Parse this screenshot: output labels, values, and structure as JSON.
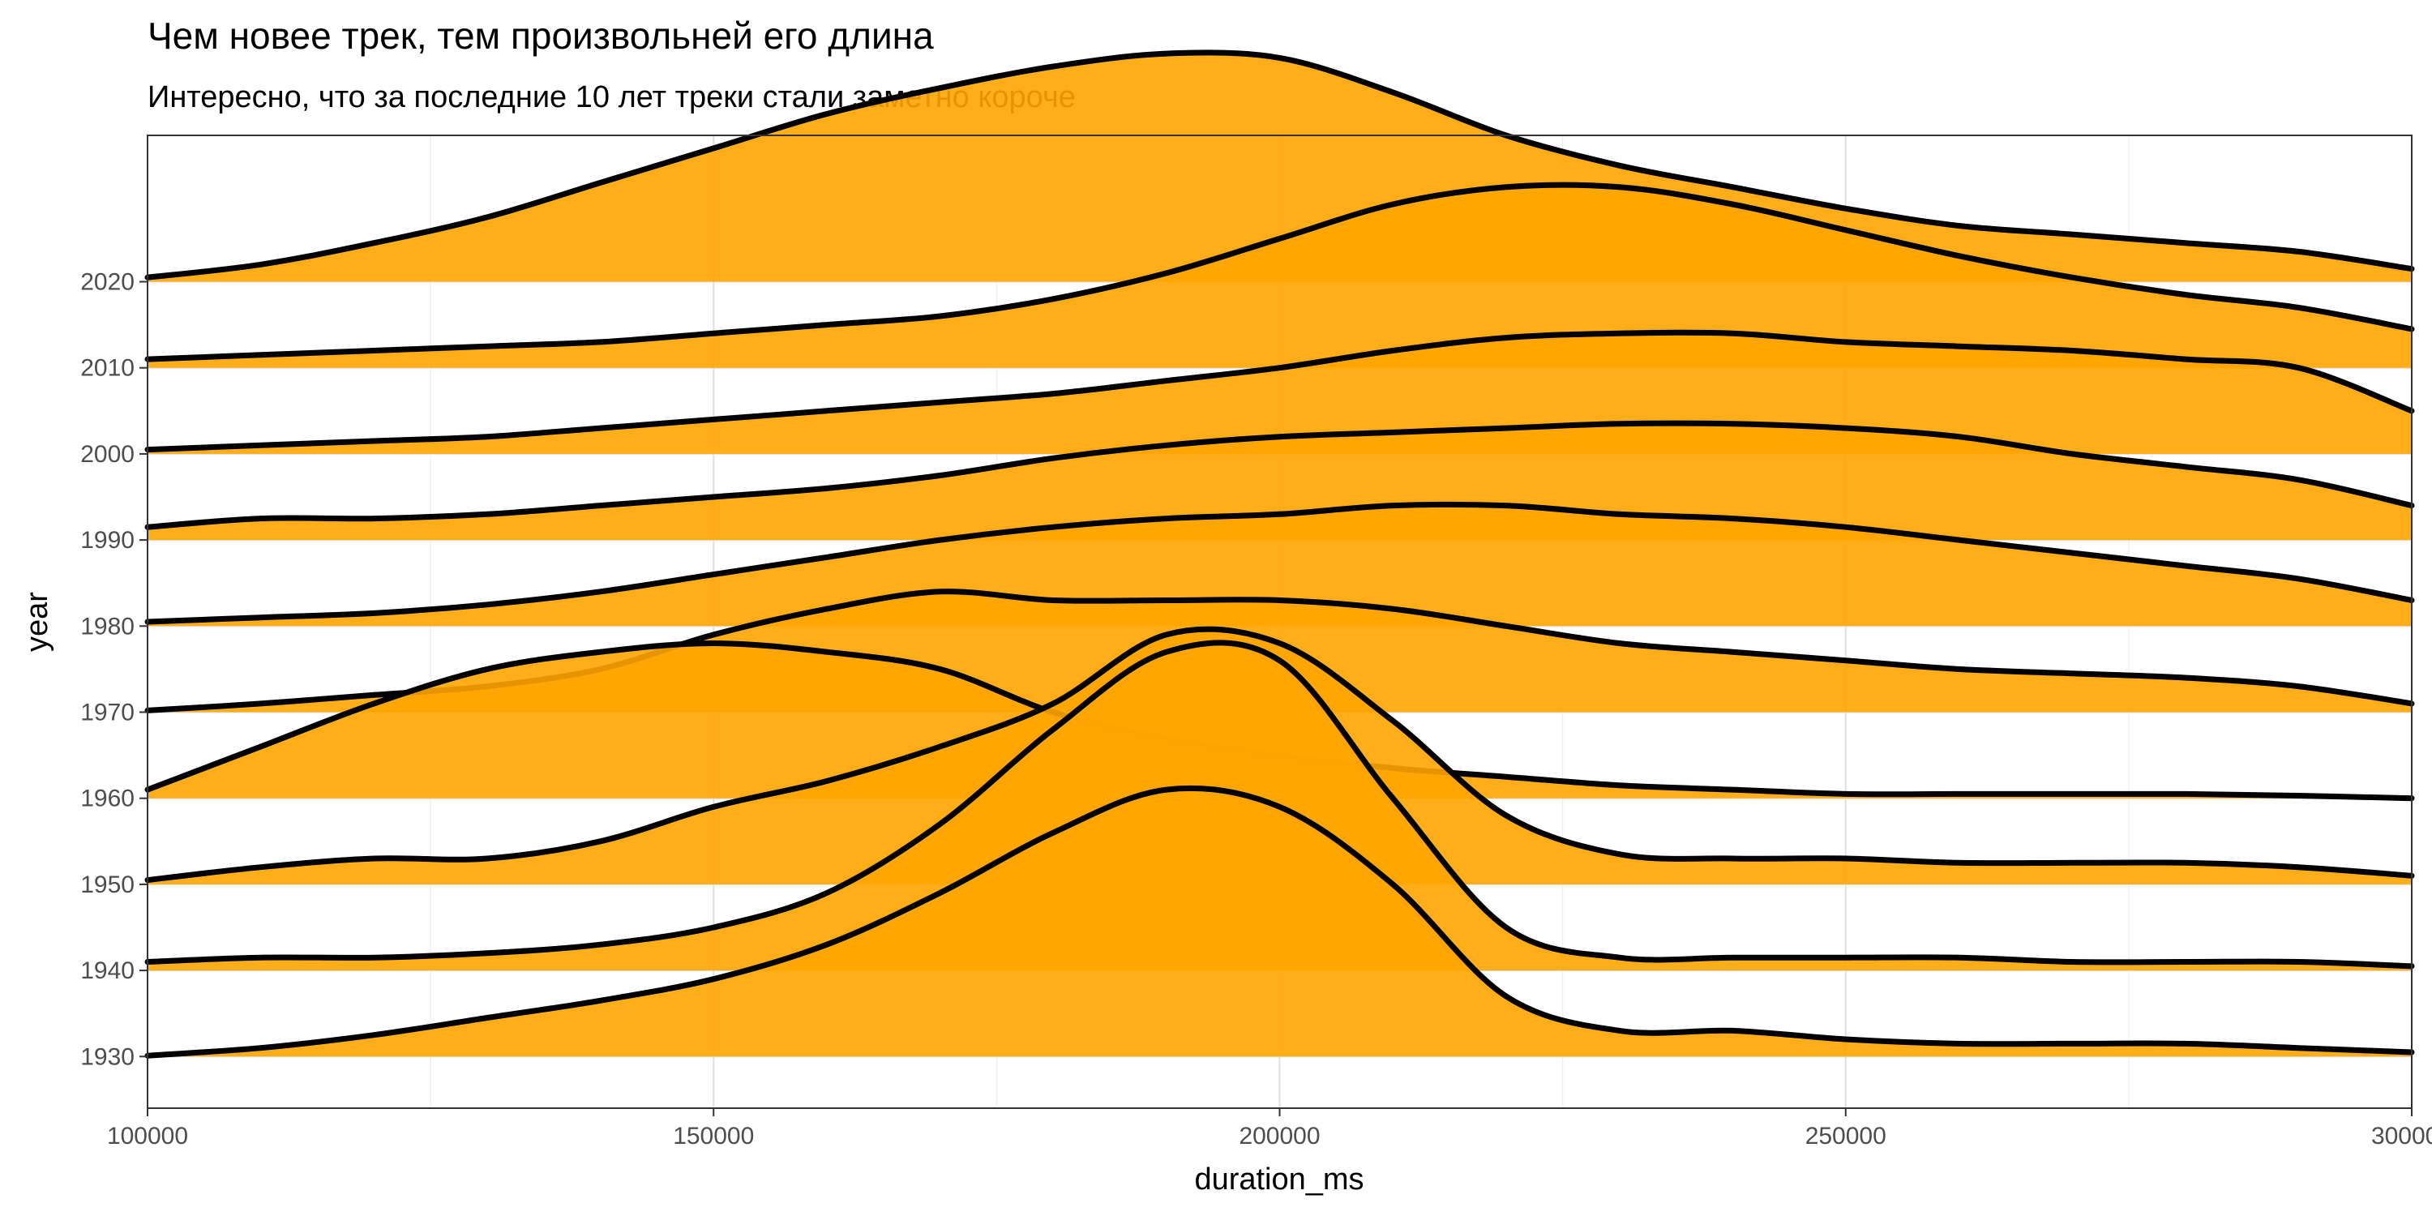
{
  "chart_data": {
    "type": "area",
    "subtype": "ridgeline-density",
    "title": "Чем новее трек, тем произвольней его длина",
    "subtitle": "Интересно, что за последние 10 лет треки стали заметно короче",
    "xlabel": "duration_ms",
    "ylabel": "year",
    "xlim": [
      100000,
      300000
    ],
    "x_ticks": [
      100000,
      150000,
      200000,
      250000,
      300000
    ],
    "x_tick_labels": [
      "100000",
      "150000",
      "200000",
      "250000",
      "300000"
    ],
    "y_ticks": [
      1930,
      1940,
      1950,
      1960,
      1970,
      1980,
      1990,
      2000,
      2010,
      2020
    ],
    "y_tick_labels": [
      "1930",
      "1940",
      "1950",
      "1960",
      "1970",
      "1980",
      "1990",
      "2000",
      "2010",
      "2020"
    ],
    "ylim": [
      1924,
      2037
    ],
    "grid": true,
    "legend": "none",
    "fill_color": "#FFA500",
    "line_color": "#000000",
    "x": [
      100000,
      110000,
      120000,
      130000,
      140000,
      150000,
      160000,
      170000,
      180000,
      190000,
      200000,
      210000,
      220000,
      230000,
      240000,
      250000,
      260000,
      270000,
      280000,
      290000,
      300000
    ],
    "series": [
      {
        "year": 1930,
        "heights": [
          0.1,
          1.0,
          2.5,
          4.5,
          6.5,
          9.0,
          13.0,
          19.0,
          26.0,
          31.0,
          29.0,
          20.0,
          7.0,
          3.0,
          3.0,
          2.0,
          1.5,
          1.5,
          1.5,
          1.0,
          0.5
        ]
      },
      {
        "year": 1940,
        "heights": [
          1.0,
          1.5,
          1.5,
          2.0,
          3.0,
          5.0,
          9.0,
          17.0,
          28.0,
          37.0,
          36.0,
          20.0,
          5.0,
          1.5,
          1.5,
          1.5,
          1.5,
          1.0,
          1.0,
          1.0,
          0.5
        ]
      },
      {
        "year": 1950,
        "heights": [
          0.5,
          2.0,
          3.0,
          3.0,
          5.0,
          9.0,
          12.0,
          16.0,
          21.0,
          29.0,
          28.0,
          19.0,
          8.0,
          3.5,
          3.0,
          3.0,
          2.5,
          2.5,
          2.5,
          2.0,
          1.0
        ]
      },
      {
        "year": 1960,
        "heights": [
          1.0,
          6.0,
          11.0,
          15.0,
          17.0,
          18.0,
          17.0,
          15.0,
          10.0,
          7.0,
          5.0,
          3.5,
          2.5,
          1.5,
          1.0,
          0.5,
          0.5,
          0.5,
          0.5,
          0.3,
          0.0
        ]
      },
      {
        "year": 1970,
        "heights": [
          0.2,
          1.0,
          2.0,
          3.0,
          5.0,
          9.0,
          12.0,
          14.0,
          13.0,
          13.0,
          13.0,
          12.0,
          10.0,
          8.0,
          7.0,
          6.0,
          5.0,
          4.5,
          4.0,
          3.0,
          1.0
        ]
      },
      {
        "year": 1980,
        "heights": [
          0.5,
          1.0,
          1.5,
          2.5,
          4.0,
          6.0,
          8.0,
          10.0,
          11.5,
          12.5,
          13.0,
          14.0,
          14.0,
          13.0,
          12.5,
          11.5,
          10.0,
          8.5,
          7.0,
          5.5,
          3.0
        ]
      },
      {
        "year": 1990,
        "heights": [
          1.5,
          2.5,
          2.5,
          3.0,
          4.0,
          5.0,
          6.0,
          7.5,
          9.5,
          11.0,
          12.0,
          12.5,
          13.0,
          13.5,
          13.5,
          13.0,
          12.0,
          10.0,
          8.5,
          7.0,
          4.0
        ]
      },
      {
        "year": 2000,
        "heights": [
          0.5,
          1.0,
          1.5,
          2.0,
          3.0,
          4.0,
          5.0,
          6.0,
          7.0,
          8.5,
          10.0,
          12.0,
          13.5,
          14.0,
          14.0,
          13.0,
          12.5,
          12.0,
          11.0,
          10.0,
          5.0
        ]
      },
      {
        "year": 2010,
        "heights": [
          1.0,
          1.5,
          2.0,
          2.5,
          3.0,
          4.0,
          5.0,
          6.0,
          8.0,
          11.0,
          15.0,
          19.0,
          21.0,
          21.0,
          19.0,
          16.0,
          13.0,
          10.5,
          8.5,
          7.0,
          4.5
        ]
      },
      {
        "year": 2020,
        "heights": [
          0.5,
          2.0,
          4.5,
          7.5,
          11.5,
          15.5,
          19.5,
          22.5,
          25.0,
          26.5,
          26.0,
          22.0,
          17.0,
          13.5,
          11.0,
          8.5,
          6.5,
          5.5,
          4.5,
          3.5,
          1.5
        ]
      }
    ]
  }
}
